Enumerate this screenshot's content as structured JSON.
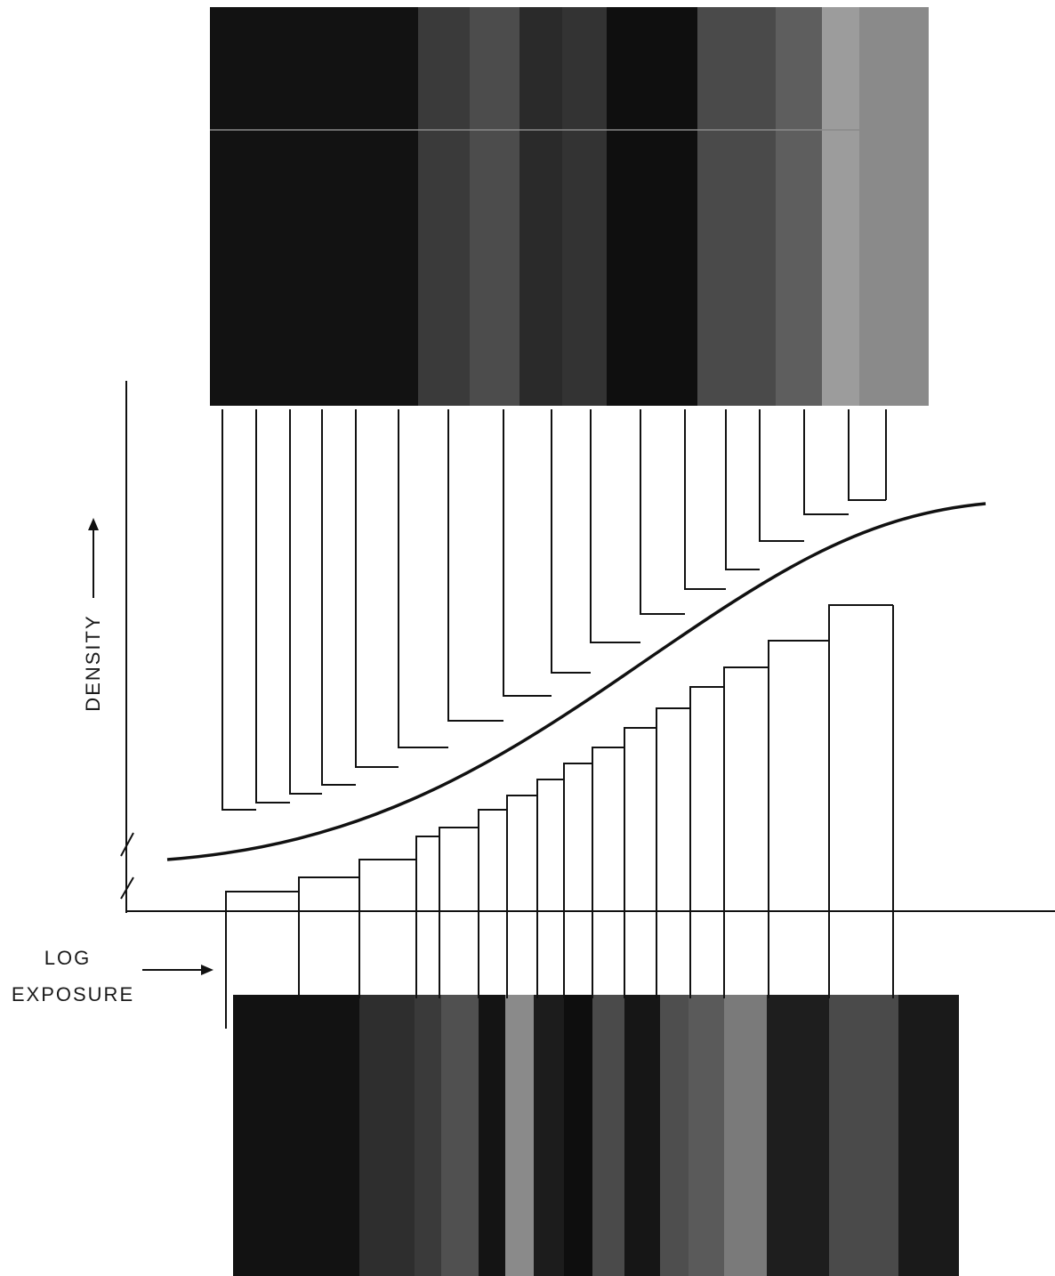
{
  "labels": {
    "y_axis": "DENSITY",
    "x_axis_line1": "LOG",
    "x_axis_line2": "EXPOSURE"
  },
  "colors": {
    "ink": "#111111",
    "paper": "#ffffff"
  },
  "top_photo": {
    "bands": [
      {
        "shade": "#121212"
      },
      {
        "shade": "#3a3a3a"
      },
      {
        "shade": "#4c4c4c"
      },
      {
        "shade": "#2a2a2a"
      },
      {
        "shade": "#333333"
      },
      {
        "shade": "#0f0f0f"
      },
      {
        "shade": "#4a4a4a"
      },
      {
        "shade": "#5e5e5e"
      },
      {
        "shade": "#9c9c9c"
      },
      {
        "shade": "#8a8a8a"
      },
      {
        "shade": "#101010"
      }
    ]
  },
  "bottom_photo": {
    "bands": [
      {
        "shade": "#121212"
      },
      {
        "shade": "#2e2e2e"
      },
      {
        "shade": "#3a3a3a"
      },
      {
        "shade": "#505050"
      },
      {
        "shade": "#141414"
      },
      {
        "shade": "#8a8a8a"
      },
      {
        "shade": "#1c1c1c"
      },
      {
        "shade": "#0e0e0e"
      },
      {
        "shade": "#4a4a4a"
      },
      {
        "shade": "#161616"
      },
      {
        "shade": "#4e4e4e"
      },
      {
        "shade": "#5a5a5a"
      },
      {
        "shade": "#7a7a7a"
      },
      {
        "shade": "#1e1e1e"
      },
      {
        "shade": "#4a4a4a"
      },
      {
        "shade": "#1a1a1a"
      }
    ]
  }
}
